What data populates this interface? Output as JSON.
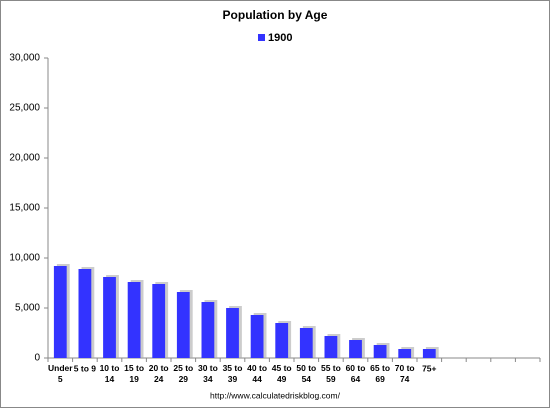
{
  "chart_data": {
    "type": "bar",
    "title": "Population by Age",
    "categories": [
      "Under 5",
      "5 to 9",
      "10 to 14",
      "15 to 19",
      "20 to 24",
      "25 to 29",
      "30 to 34",
      "35 to 39",
      "40 to 44",
      "45 to 49",
      "50 to 54",
      "55 to 59",
      "60 to 64",
      "65 to 69",
      "70 to 74",
      "75+",
      null,
      null,
      null,
      null
    ],
    "series": [
      {
        "name": "1900",
        "color": "#3333ff",
        "values": [
          9200,
          8900,
          8100,
          7600,
          7400,
          6600,
          5600,
          5000,
          4300,
          3500,
          3000,
          2200,
          1800,
          1300,
          900,
          900,
          null,
          null,
          null,
          null
        ]
      }
    ],
    "ylim": [
      0,
      30000
    ],
    "yticks": [
      0,
      {
        "value": 5000,
        "label": "5,000"
      },
      {
        "value": 10000,
        "label": "10,000"
      },
      {
        "value": 15000,
        "label": "15,000"
      },
      {
        "value": 20000,
        "label": "20,000"
      },
      {
        "value": 25000,
        "label": "25,000"
      },
      {
        "value": 30000,
        "label": "30,000"
      }
    ],
    "grid": false,
    "legend": "top",
    "source": "http://www.calculatedriskblog.com/"
  }
}
